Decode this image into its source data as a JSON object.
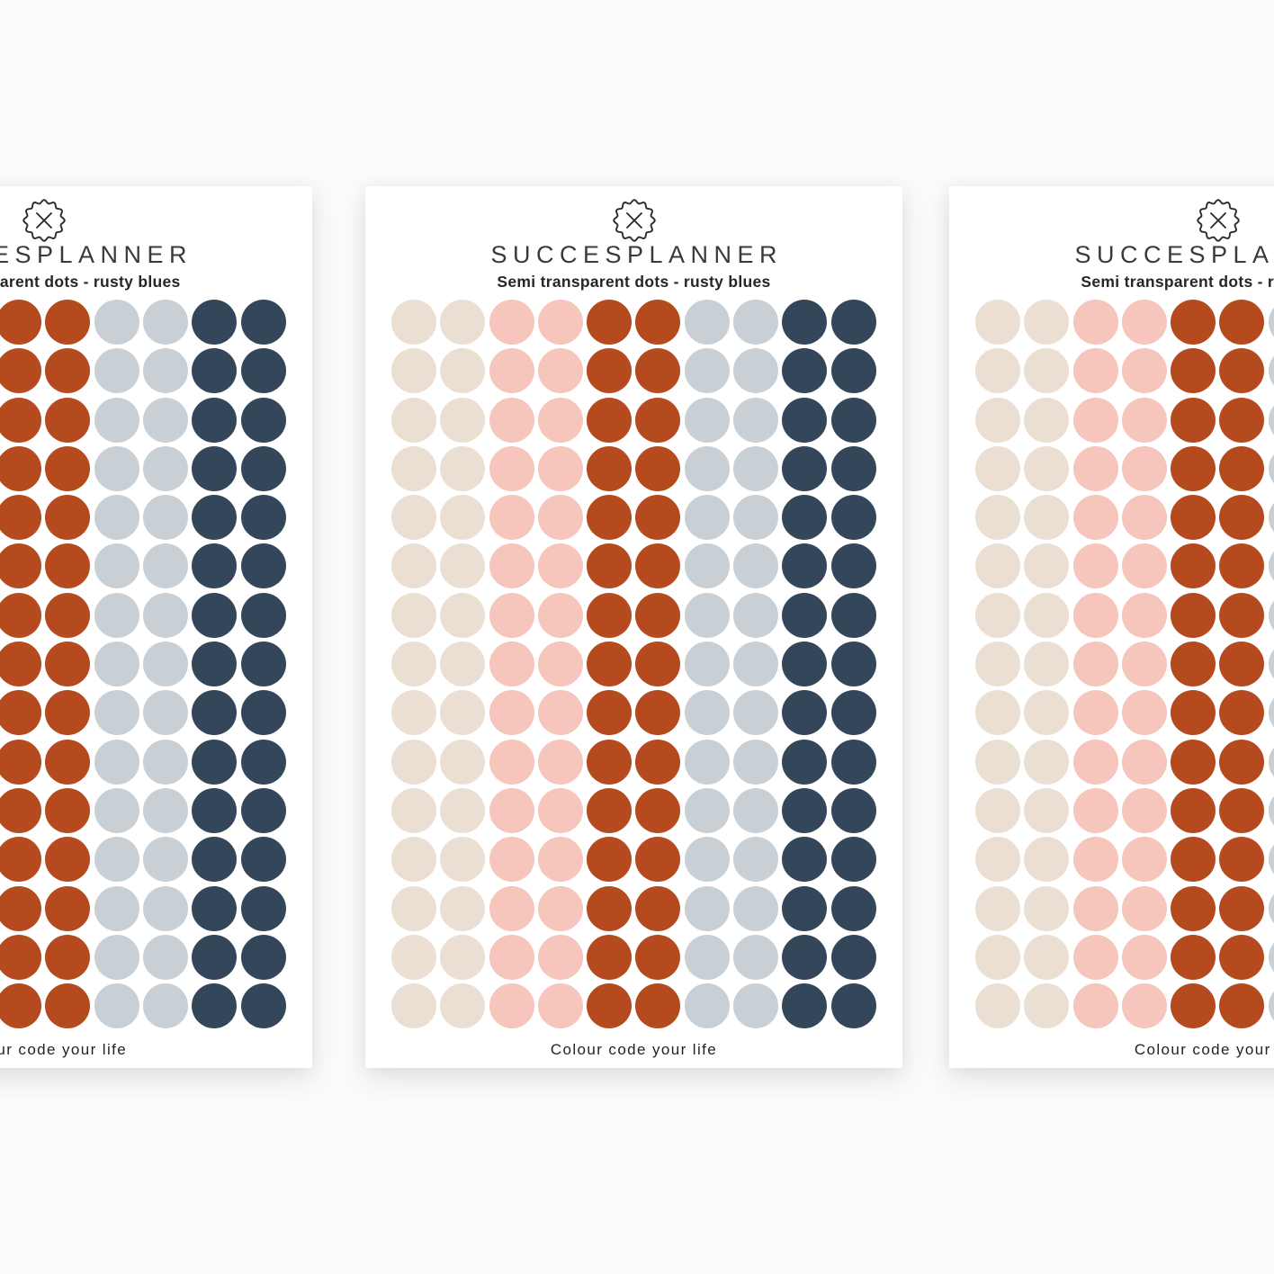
{
  "page": {
    "background_color": "#fbfbfb",
    "card_color": "#ffffff"
  },
  "sheet": {
    "brand": "SUCCESPLANNER",
    "subtitle": "Semi transparent dots - rusty blues",
    "tagline": "Colour code your life",
    "logo_icon": "scalloped-seal-x-icon",
    "text_color": "#2b2b2b",
    "grid": {
      "rows": 15,
      "columns": [
        "cream",
        "cream",
        "pink",
        "pink",
        "rust",
        "rust",
        "gray",
        "gray",
        "navy",
        "navy"
      ]
    },
    "palette": {
      "cream": "#ebdfd3",
      "pink": "#f6c5bc",
      "rust": "#b44a1e",
      "gray": "#c8d0d6",
      "navy": "#344659"
    }
  },
  "sheets": [
    {
      "position": "left"
    },
    {
      "position": "center"
    },
    {
      "position": "right"
    }
  ]
}
